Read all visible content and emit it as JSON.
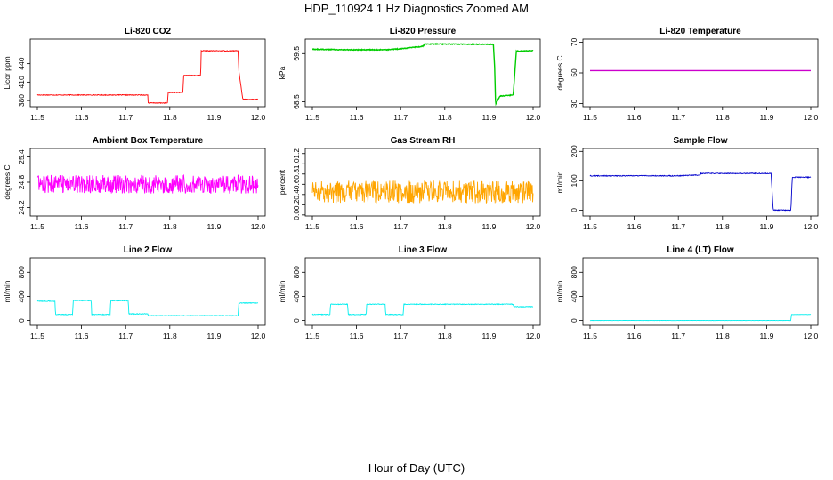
{
  "figure": {
    "title": "HDP_110924  1 Hz Diagnostics Zoomed AM",
    "xlabel": "Hour of Day (UTC)"
  },
  "chart_data": [
    {
      "type": "line",
      "title": "Li-820 CO2",
      "ylabel": "Licor ppm",
      "color": "#ff0000",
      "xlim": [
        11.5,
        12.0
      ],
      "ylim": [
        370,
        480
      ],
      "xticks": [
        11.5,
        11.6,
        11.7,
        11.8,
        11.9,
        12.0
      ],
      "yticks": [
        380,
        410,
        440
      ],
      "ytick_labels": [
        "380",
        "410",
        "440"
      ],
      "noise": 0.6,
      "series": [
        {
          "x": [
            11.5,
            11.75,
            11.751,
            11.795,
            11.796,
            11.83,
            11.831,
            11.87,
            11.871,
            11.955,
            11.956,
            11.965,
            11.966,
            12.0
          ],
          "y": [
            389,
            389,
            376,
            376,
            393,
            393,
            421,
            421,
            461,
            461,
            430,
            384,
            382,
            382
          ]
        }
      ]
    },
    {
      "type": "line",
      "title": "Li-820 Pressure",
      "ylabel": "kPa",
      "color": "#00cc00",
      "xlim": [
        11.5,
        12.0
      ],
      "ylim": [
        68.4,
        69.8
      ],
      "xticks": [
        11.5,
        11.6,
        11.7,
        11.8,
        11.9,
        12.0
      ],
      "yticks": [
        68.5,
        69.5
      ],
      "ytick_labels": [
        "68.5",
        "69.5"
      ],
      "noise": 0.008,
      "series": [
        {
          "x": [
            11.5,
            11.58,
            11.6,
            11.66,
            11.67,
            11.7,
            11.75,
            11.755,
            11.91,
            11.913,
            11.915,
            11.925,
            11.945,
            11.955,
            11.962,
            12.0
          ],
          "y": [
            69.59,
            69.58,
            69.58,
            69.58,
            69.58,
            69.6,
            69.65,
            69.7,
            69.69,
            69.2,
            68.45,
            68.62,
            68.63,
            68.65,
            69.55,
            69.56
          ]
        }
      ]
    },
    {
      "type": "line",
      "title": "Li-820 Temperature",
      "ylabel": "degrees C",
      "color": "#cc00cc",
      "xlim": [
        11.5,
        12.0
      ],
      "ylim": [
        28,
        72
      ],
      "xticks": [
        11.5,
        11.6,
        11.7,
        11.8,
        11.9,
        12.0
      ],
      "yticks": [
        30,
        50,
        70
      ],
      "ytick_labels": [
        "30",
        "50",
        "70"
      ],
      "noise": 0,
      "series": [
        {
          "x": [
            11.5,
            12.0
          ],
          "y": [
            51.5,
            51.5
          ]
        }
      ]
    },
    {
      "type": "line",
      "title": "Ambient Box Temperature",
      "ylabel": "degrees C",
      "color": "#ff00ff",
      "xlim": [
        11.5,
        12.0
      ],
      "ylim": [
        24.0,
        25.6
      ],
      "xticks": [
        11.5,
        11.6,
        11.7,
        11.8,
        11.9,
        12.0
      ],
      "yticks": [
        24.2,
        24.8,
        25.4
      ],
      "ytick_labels": [
        "24.2",
        "24.8",
        "25.4"
      ],
      "noise": 0.22,
      "series": [
        {
          "x": [
            11.5,
            12.0
          ],
          "y": [
            24.75,
            24.75
          ]
        }
      ]
    },
    {
      "type": "line",
      "title": "Gas Stream RH",
      "ylabel": "percent",
      "color": "#ffa500",
      "xlim": [
        11.5,
        12.0
      ],
      "ylim": [
        -0.02,
        1.3
      ],
      "xticks": [
        11.5,
        11.6,
        11.7,
        11.8,
        11.9,
        12.0
      ],
      "yticks": [
        0.0,
        0.2,
        0.4,
        0.6,
        0.8,
        1.0,
        1.2
      ],
      "ytick_labels": [
        "0.0",
        "0.2",
        "0.4",
        "0.6",
        "0.8",
        "1.0",
        "1.2"
      ],
      "noise": 0.22,
      "floor": 0,
      "series": [
        {
          "x": [
            11.5,
            12.0
          ],
          "y": [
            0.45,
            0.45
          ]
        }
      ]
    },
    {
      "type": "line",
      "title": "Sample Flow",
      "ylabel": "ml/min",
      "color": "#0000cc",
      "xlim": [
        11.5,
        12.0
      ],
      "ylim": [
        -20,
        210
      ],
      "xticks": [
        11.5,
        11.6,
        11.7,
        11.8,
        11.9,
        12.0
      ],
      "yticks": [
        0,
        100,
        200
      ],
      "ytick_labels": [
        "0",
        "100",
        "200"
      ],
      "noise": 1.5,
      "series": [
        {
          "x": [
            11.5,
            11.62,
            11.7,
            11.75,
            11.751,
            11.91,
            11.915,
            11.955,
            11.958,
            12.0
          ],
          "y": [
            117,
            117,
            117,
            120,
            125,
            125,
            0,
            0,
            112,
            112
          ]
        }
      ]
    },
    {
      "type": "line",
      "title": "Line 2 Flow",
      "ylabel": "ml/min",
      "color": "#00eeee",
      "xlim": [
        11.5,
        12.0
      ],
      "ylim": [
        -80,
        1040
      ],
      "xticks": [
        11.5,
        11.6,
        11.7,
        11.8,
        11.9,
        12.0
      ],
      "yticks": [
        0,
        400,
        800
      ],
      "ytick_labels": [
        "0",
        "400",
        "800"
      ],
      "noise": 6,
      "series": [
        {
          "x": [
            11.5,
            11.54,
            11.541,
            11.58,
            11.581,
            11.622,
            11.623,
            11.665,
            11.666,
            11.706,
            11.707,
            11.75,
            11.751,
            11.955,
            11.956,
            12.0
          ],
          "y": [
            320,
            320,
            100,
            100,
            330,
            330,
            100,
            100,
            330,
            330,
            110,
            110,
            80,
            80,
            290,
            290
          ]
        }
      ]
    },
    {
      "type": "line",
      "title": "Line 3 Flow",
      "ylabel": "ml/min",
      "color": "#00eeee",
      "xlim": [
        11.5,
        12.0
      ],
      "ylim": [
        -80,
        1040
      ],
      "xticks": [
        11.5,
        11.6,
        11.7,
        11.8,
        11.9,
        12.0
      ],
      "yticks": [
        0,
        400,
        800
      ],
      "ytick_labels": [
        "0",
        "400",
        "800"
      ],
      "noise": 6,
      "series": [
        {
          "x": [
            11.5,
            11.54,
            11.541,
            11.58,
            11.581,
            11.622,
            11.623,
            11.665,
            11.666,
            11.706,
            11.707,
            11.955,
            11.956,
            12.0
          ],
          "y": [
            100,
            100,
            270,
            270,
            100,
            100,
            270,
            270,
            100,
            100,
            270,
            270,
            230,
            230
          ]
        }
      ]
    },
    {
      "type": "line",
      "title": "Line 4 (LT) Flow",
      "ylabel": "ml/min",
      "color": "#00eeee",
      "xlim": [
        11.5,
        12.0
      ],
      "ylim": [
        -80,
        1040
      ],
      "xticks": [
        11.5,
        11.6,
        11.7,
        11.8,
        11.9,
        12.0
      ],
      "yticks": [
        0,
        400,
        800
      ],
      "ytick_labels": [
        "0",
        "400",
        "800"
      ],
      "noise": 2,
      "series": [
        {
          "x": [
            11.5,
            11.955,
            11.956,
            12.0
          ],
          "y": [
            0,
            0,
            100,
            100
          ]
        }
      ]
    }
  ]
}
